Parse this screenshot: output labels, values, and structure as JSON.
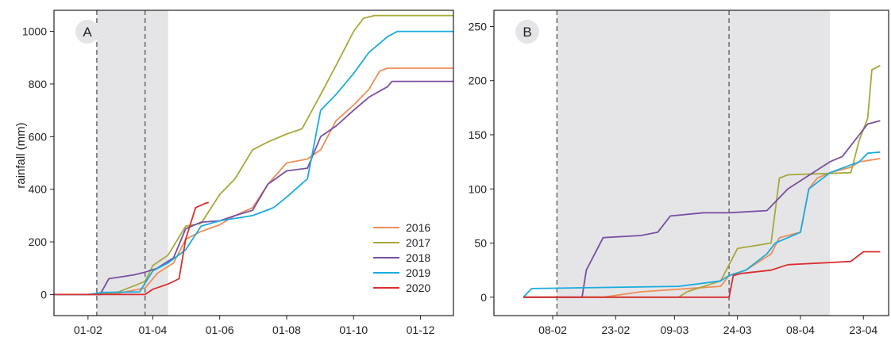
{
  "colors": {
    "2016": "#ee8e55",
    "2017": "#a8a83a",
    "2018": "#7a4fa3",
    "2019": "#1aace0",
    "2020": "#d92d2f",
    "shade": "#e5e5e8",
    "axis": "#231f20",
    "vline": "#555555"
  },
  "chart_data": [
    {
      "type": "line",
      "panel_label": "A",
      "ylabel": "rainfall (mm)",
      "xlabel": "",
      "x_unit": "date (day of year)",
      "xticks": [
        "01-02",
        "01-04",
        "01-06",
        "01-08",
        "01-10",
        "01-12"
      ],
      "ylim": [
        -80,
        1080
      ],
      "yticks": [
        0,
        200,
        400,
        600,
        800,
        1000
      ],
      "shaded_range": [
        "09-02",
        "15-04"
      ],
      "dashed_lines": [
        "09-02",
        "25-03"
      ],
      "legend": {
        "placement": "bottom-right",
        "entries": [
          "2016",
          "2017",
          "2018",
          "2019",
          "2020"
        ]
      },
      "series": [
        {
          "name": "2016",
          "points": [
            [
              "01-01",
              0
            ],
            [
              "09-02",
              0
            ],
            [
              "01-03",
              5
            ],
            [
              "25-03",
              25
            ],
            [
              "05-04",
              80
            ],
            [
              "20-04",
              120
            ],
            [
              "01-05",
              210
            ],
            [
              "15-05",
              240
            ],
            [
              "01-06",
              265
            ],
            [
              "15-06",
              300
            ],
            [
              "01-07",
              330
            ],
            [
              "15-07",
              420
            ],
            [
              "01-08",
              500
            ],
            [
              "20-08",
              515
            ],
            [
              "01-09",
              550
            ],
            [
              "15-09",
              660
            ],
            [
              "01-10",
              720
            ],
            [
              "15-10",
              780
            ],
            [
              "25-10",
              850
            ],
            [
              "01-11",
              860
            ],
            [
              "31-12",
              860
            ]
          ]
        },
        {
          "name": "2017",
          "points": [
            [
              "01-01",
              0
            ],
            [
              "09-02",
              0
            ],
            [
              "01-03",
              10
            ],
            [
              "25-03",
              50
            ],
            [
              "01-04",
              110
            ],
            [
              "15-04",
              150
            ],
            [
              "01-05",
              260
            ],
            [
              "15-05",
              270
            ],
            [
              "01-06",
              380
            ],
            [
              "15-06",
              440
            ],
            [
              "01-07",
              550
            ],
            [
              "15-07",
              580
            ],
            [
              "01-08",
              610
            ],
            [
              "15-08",
              630
            ],
            [
              "01-09",
              760
            ],
            [
              "15-09",
              870
            ],
            [
              "01-10",
              1000
            ],
            [
              "10-10",
              1050
            ],
            [
              "20-10",
              1060
            ],
            [
              "31-12",
              1060
            ]
          ]
        },
        {
          "name": "2018",
          "points": [
            [
              "01-01",
              0
            ],
            [
              "12-02",
              0
            ],
            [
              "20-02",
              60
            ],
            [
              "15-03",
              75
            ],
            [
              "25-03",
              85
            ],
            [
              "05-04",
              100
            ],
            [
              "20-04",
              140
            ],
            [
              "01-05",
              250
            ],
            [
              "15-05",
              275
            ],
            [
              "01-06",
              280
            ],
            [
              "15-06",
              300
            ],
            [
              "01-07",
              320
            ],
            [
              "15-07",
              420
            ],
            [
              "01-08",
              470
            ],
            [
              "20-08",
              480
            ],
            [
              "01-09",
              600
            ],
            [
              "15-09",
              640
            ],
            [
              "01-10",
              700
            ],
            [
              "15-10",
              750
            ],
            [
              "01-11",
              790
            ],
            [
              "05-11",
              810
            ],
            [
              "31-12",
              810
            ]
          ]
        },
        {
          "name": "2019",
          "points": [
            [
              "01-01",
              0
            ],
            [
              "01-02",
              0
            ],
            [
              "15-02",
              8
            ],
            [
              "20-03",
              10
            ],
            [
              "01-04",
              90
            ],
            [
              "15-04",
              120
            ],
            [
              "01-05",
              170
            ],
            [
              "15-05",
              260
            ],
            [
              "01-06",
              280
            ],
            [
              "01-07",
              300
            ],
            [
              "20-07",
              330
            ],
            [
              "01-08",
              370
            ],
            [
              "20-08",
              440
            ],
            [
              "01-09",
              700
            ],
            [
              "15-09",
              760
            ],
            [
              "01-10",
              840
            ],
            [
              "15-10",
              920
            ],
            [
              "01-11",
              980
            ],
            [
              "10-11",
              1000
            ],
            [
              "31-12",
              1000
            ]
          ]
        },
        {
          "name": "2020",
          "points": [
            [
              "01-01",
              0
            ],
            [
              "25-03",
              0
            ],
            [
              "01-04",
              20
            ],
            [
              "15-04",
              40
            ],
            [
              "25-04",
              60
            ],
            [
              "01-05",
              210
            ],
            [
              "10-05",
              330
            ],
            [
              "18-05",
              345
            ],
            [
              "22-05",
              350
            ]
          ]
        }
      ]
    },
    {
      "type": "line",
      "panel_label": "B",
      "ylabel": "",
      "xlabel": "",
      "x_unit": "date",
      "xticks": [
        "08-02",
        "23-02",
        "09-03",
        "24-03",
        "08-04",
        "23-04"
      ],
      "ylim": [
        -17,
        265
      ],
      "yticks": [
        0,
        50,
        100,
        150,
        200,
        250
      ],
      "shaded_range": [
        "09-02",
        "15-04"
      ],
      "dashed_lines": [
        "09-02",
        "22-03"
      ],
      "series": [
        {
          "name": "2016",
          "points": [
            [
              "01-02",
              0
            ],
            [
              "20-02",
              0
            ],
            [
              "01-03",
              5
            ],
            [
              "20-03",
              10
            ],
            [
              "22-03",
              20
            ],
            [
              "26-03",
              25
            ],
            [
              "01-04",
              40
            ],
            [
              "03-04",
              55
            ],
            [
              "08-04",
              60
            ],
            [
              "10-04",
              100
            ],
            [
              "12-04",
              110
            ],
            [
              "15-04",
              115
            ],
            [
              "20-04",
              120
            ],
            [
              "22-04",
              125
            ],
            [
              "27-04",
              128
            ]
          ]
        },
        {
          "name": "2017",
          "points": [
            [
              "01-02",
              0
            ],
            [
              "10-03",
              0
            ],
            [
              "12-03",
              5
            ],
            [
              "20-03",
              15
            ],
            [
              "24-03",
              45
            ],
            [
              "01-04",
              50
            ],
            [
              "03-04",
              110
            ],
            [
              "05-04",
              113
            ],
            [
              "20-04",
              115
            ],
            [
              "22-04",
              145
            ],
            [
              "24-04",
              165
            ],
            [
              "25-04",
              210
            ],
            [
              "26-04",
              212
            ],
            [
              "27-04",
              214
            ]
          ]
        },
        {
          "name": "2018",
          "points": [
            [
              "01-02",
              0
            ],
            [
              "15-02",
              0
            ],
            [
              "16-02",
              25
            ],
            [
              "20-02",
              55
            ],
            [
              "01-03",
              57
            ],
            [
              "05-03",
              60
            ],
            [
              "08-03",
              75
            ],
            [
              "16-03",
              78
            ],
            [
              "22-03",
              78
            ],
            [
              "31-03",
              80
            ],
            [
              "05-04",
              100
            ],
            [
              "15-04",
              125
            ],
            [
              "18-04",
              130
            ],
            [
              "20-04",
              140
            ],
            [
              "22-04",
              150
            ],
            [
              "24-04",
              160
            ],
            [
              "27-04",
              163
            ]
          ]
        },
        {
          "name": "2019",
          "points": [
            [
              "01-02",
              0
            ],
            [
              "03-02",
              8
            ],
            [
              "10-03",
              10
            ],
            [
              "20-03",
              15
            ],
            [
              "22-03",
              20
            ],
            [
              "26-03",
              25
            ],
            [
              "31-03",
              40
            ],
            [
              "02-04",
              50
            ],
            [
              "08-04",
              60
            ],
            [
              "10-04",
              100
            ],
            [
              "15-04",
              115
            ],
            [
              "22-04",
              125
            ],
            [
              "24-04",
              133
            ],
            [
              "27-04",
              134
            ]
          ]
        },
        {
          "name": "2020",
          "points": [
            [
              "01-02",
              0
            ],
            [
              "22-03",
              0
            ],
            [
              "23-03",
              20
            ],
            [
              "25-03",
              22
            ],
            [
              "01-04",
              25
            ],
            [
              "05-04",
              30
            ],
            [
              "15-04",
              32
            ],
            [
              "20-04",
              33
            ],
            [
              "23-04",
              42
            ],
            [
              "27-04",
              42
            ]
          ]
        }
      ]
    }
  ]
}
